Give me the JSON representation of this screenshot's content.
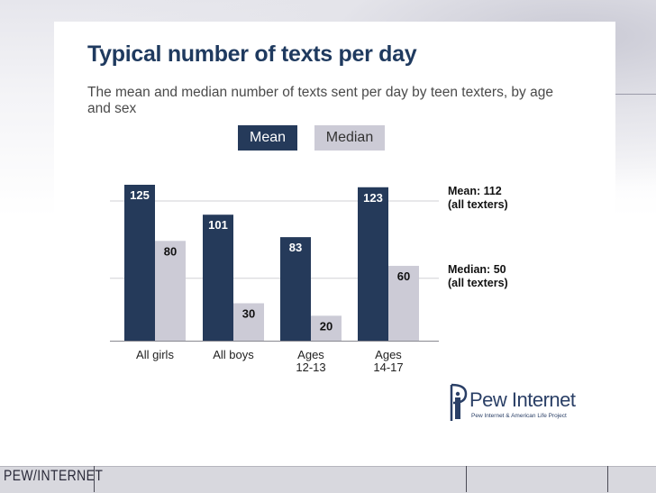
{
  "title": "Typical number of texts per day",
  "subtitle": "The mean and median number of texts sent per day by teen texters, by age and sex",
  "legend": {
    "mean": "Mean",
    "median": "Median"
  },
  "reference": {
    "mean_label": "Mean: 112",
    "mean_sub": "(all texters)",
    "median_label": "Median: 50",
    "median_sub": "(all texters)"
  },
  "logo": {
    "name": "Pew Internet",
    "tagline": "Pew Internet & American Life Project"
  },
  "footer": {
    "brand": "PEW/INTERNET"
  },
  "colors": {
    "mean": "#253a5a",
    "median": "#cccbd6",
    "title": "#1f3a5f"
  },
  "chart_data": {
    "type": "bar",
    "title": "Typical number of texts per day",
    "subtitle": "The mean and median number of texts sent per day by teen texters, by age and sex",
    "categories": [
      [
        "All girls"
      ],
      [
        "All boys"
      ],
      [
        "Ages",
        "12-13"
      ],
      [
        "Ages",
        "14-17"
      ]
    ],
    "series": [
      {
        "name": "Mean",
        "values": [
          125,
          101,
          83,
          123
        ],
        "color": "#253a5a",
        "label_color": "#ffffff"
      },
      {
        "name": "Median",
        "values": [
          80,
          30,
          20,
          60
        ],
        "color": "#cccbd6",
        "label_color": "#111111"
      }
    ],
    "reference_lines": [
      112,
      50
    ],
    "ylim": [
      0,
      130
    ],
    "legend_position": "top"
  }
}
